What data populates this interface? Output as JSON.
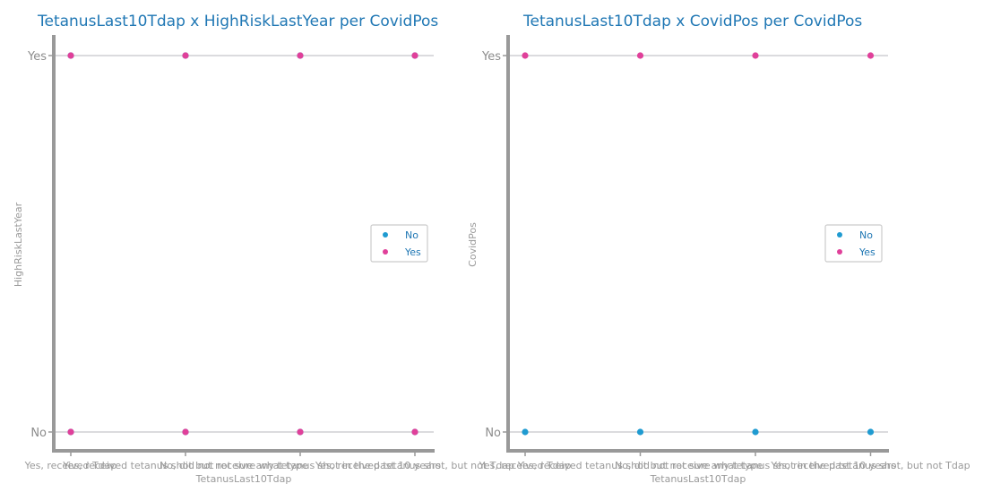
{
  "colors": {
    "No": "#1f9bd1",
    "Yes": "#e0409a",
    "axis": "#999999",
    "grid": "#cfcfd4"
  },
  "chart_data": [
    {
      "type": "scatter",
      "title": "TetanusLast10Tdap x HighRiskLastYear per CovidPos",
      "xlabel": "TetanusLast10Tdap",
      "ylabel": "HighRiskLastYear",
      "x_categories": [
        "Yes, received Tdap",
        "Yes, received tetanus shot but not sure what type",
        "No, did not receive any tetanus shot in the past 10 years",
        "Yes, received tetanus shot, but not Tdap"
      ],
      "y_categories": [
        "No",
        "Yes"
      ],
      "legend": [
        "No",
        "Yes"
      ],
      "legend_position": "center-right",
      "grid": "horizontal",
      "series": [
        {
          "name": "No",
          "points": [
            [
              "Yes, received Tdap",
              "No"
            ],
            [
              "Yes, received tetanus shot but not sure what type",
              "No"
            ],
            [
              "No, did not receive any tetanus shot in the past 10 years",
              "No"
            ],
            [
              "Yes, received tetanus shot, but not Tdap",
              "No"
            ],
            [
              "Yes, received Tdap",
              "Yes"
            ],
            [
              "Yes, received tetanus shot but not sure what type",
              "Yes"
            ],
            [
              "No, did not receive any tetanus shot in the past 10 years",
              "Yes"
            ],
            [
              "Yes, received tetanus shot, but not Tdap",
              "Yes"
            ]
          ]
        },
        {
          "name": "Yes",
          "points": [
            [
              "Yes, received Tdap",
              "No"
            ],
            [
              "Yes, received tetanus shot but not sure what type",
              "No"
            ],
            [
              "No, did not receive any tetanus shot in the past 10 years",
              "No"
            ],
            [
              "Yes, received tetanus shot, but not Tdap",
              "No"
            ],
            [
              "Yes, received Tdap",
              "Yes"
            ],
            [
              "Yes, received tetanus shot but not sure what type",
              "Yes"
            ],
            [
              "No, did not receive any tetanus shot in the past 10 years",
              "Yes"
            ],
            [
              "Yes, received tetanus shot, but not Tdap",
              "Yes"
            ]
          ]
        }
      ]
    },
    {
      "type": "scatter",
      "title": "TetanusLast10Tdap x CovidPos per CovidPos",
      "xlabel": "TetanusLast10Tdap",
      "ylabel": "CovidPos",
      "x_categories": [
        "Yes, received Tdap",
        "Yes, received tetanus shot but not sure what type",
        "No, did not receive any tetanus shot in the past 10 years",
        "Yes, received tetanus shot, but not Tdap"
      ],
      "y_categories": [
        "No",
        "Yes"
      ],
      "legend": [
        "No",
        "Yes"
      ],
      "legend_position": "center-right",
      "grid": "horizontal",
      "series": [
        {
          "name": "No",
          "points": [
            [
              "Yes, received Tdap",
              "No"
            ],
            [
              "Yes, received tetanus shot but not sure what type",
              "No"
            ],
            [
              "No, did not receive any tetanus shot in the past 10 years",
              "No"
            ],
            [
              "Yes, received tetanus shot, but not Tdap",
              "No"
            ]
          ]
        },
        {
          "name": "Yes",
          "points": [
            [
              "Yes, received Tdap",
              "Yes"
            ],
            [
              "Yes, received tetanus shot but not sure what type",
              "Yes"
            ],
            [
              "No, did not receive any tetanus shot in the past 10 years",
              "Yes"
            ],
            [
              "Yes, received tetanus shot, but not Tdap",
              "Yes"
            ]
          ]
        }
      ]
    }
  ]
}
